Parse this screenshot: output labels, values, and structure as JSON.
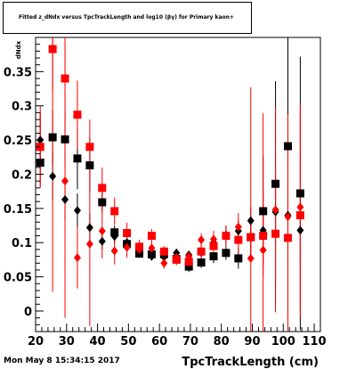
{
  "title": "Fitted  z_dNdx  versus TpcTrackLength and log10 (βγ) for Primary kaon+",
  "footer": {
    "timestamp": "Mon May  8 15:34:15 2017"
  },
  "chart_data": {
    "type": "scatter",
    "title": "Fitted  z_dNdx  versus TpcTrackLength and log10 (βγ) for Primary kaon+",
    "xlabel": "TpcTrackLength (cm)",
    "ylabel": "dNdx",
    "xlim": [
      20,
      112
    ],
    "ylim": [
      -0.03,
      0.4
    ],
    "xticks": [
      20,
      30,
      40,
      50,
      60,
      70,
      80,
      90,
      100,
      110
    ],
    "yticks": [
      0,
      0.05,
      0.1,
      0.15,
      0.2,
      0.25,
      0.3,
      0.35
    ],
    "xtick_labels": [
      "20",
      "30",
      "40",
      "50",
      "60",
      "70",
      "80",
      "90",
      "100",
      "110"
    ],
    "ytick_labels": [
      "0",
      "0.05",
      "0.1",
      "0.15",
      "0.2",
      "0.25",
      "0.3",
      "0.35"
    ],
    "grid": false,
    "series": [
      {
        "color": "#000000",
        "marker": "square",
        "points": [
          {
            "x": 21.5,
            "y": 0.217,
            "err": 0.035
          },
          {
            "x": 25.5,
            "y": 0.254,
            "err": 0.04
          },
          {
            "x": 29.5,
            "y": 0.251,
            "err": 0.04
          },
          {
            "x": 33.5,
            "y": 0.223,
            "err": 0.045
          },
          {
            "x": 37.5,
            "y": 0.213,
            "err": 0.04
          },
          {
            "x": 41.5,
            "y": 0.159,
            "err": 0.015
          },
          {
            "x": 45.5,
            "y": 0.115,
            "err": 0.01
          },
          {
            "x": 49.5,
            "y": 0.098,
            "err": 0.008
          },
          {
            "x": 53.5,
            "y": 0.084,
            "err": 0.006
          },
          {
            "x": 57.5,
            "y": 0.083,
            "err": 0.006
          },
          {
            "x": 61.5,
            "y": 0.083,
            "err": 0.006
          },
          {
            "x": 65.5,
            "y": 0.076,
            "err": 0.006
          },
          {
            "x": 69.5,
            "y": 0.065,
            "err": 0.008
          },
          {
            "x": 73.5,
            "y": 0.071,
            "err": 0.008
          },
          {
            "x": 77.5,
            "y": 0.08,
            "err": 0.01
          },
          {
            "x": 81.5,
            "y": 0.085,
            "err": 0.01
          },
          {
            "x": 85.5,
            "y": 0.077,
            "err": 0.015
          },
          {
            "x": 89.5,
            "y": 0.108,
            "err": 0.03
          },
          {
            "x": 93.5,
            "y": 0.146,
            "err": 0.08
          },
          {
            "x": 97.5,
            "y": 0.186,
            "err": 0.15
          },
          {
            "x": 101.5,
            "y": 0.241,
            "err": 0.25
          },
          {
            "x": 105.5,
            "y": 0.172,
            "err": 0.2
          }
        ]
      },
      {
        "color": "#000000",
        "marker": "diamond",
        "points": [
          {
            "x": 21.5,
            "y": 0.25,
            "err": 0.04
          },
          {
            "x": 25.5,
            "y": 0.197,
            "err": 0.035
          },
          {
            "x": 29.5,
            "y": 0.163,
            "err": 0.03
          },
          {
            "x": 33.5,
            "y": 0.147,
            "err": 0.025
          },
          {
            "x": 37.5,
            "y": 0.122,
            "err": 0.02
          },
          {
            "x": 41.5,
            "y": 0.102,
            "err": 0.012
          },
          {
            "x": 45.5,
            "y": 0.109,
            "err": 0.01
          },
          {
            "x": 49.5,
            "y": 0.1,
            "err": 0.008
          },
          {
            "x": 53.5,
            "y": 0.09,
            "err": 0.006
          },
          {
            "x": 57.5,
            "y": 0.08,
            "err": 0.006
          },
          {
            "x": 61.5,
            "y": 0.079,
            "err": 0.006
          },
          {
            "x": 65.5,
            "y": 0.085,
            "err": 0.006
          },
          {
            "x": 69.5,
            "y": 0.082,
            "err": 0.006
          },
          {
            "x": 73.5,
            "y": 0.086,
            "err": 0.008
          },
          {
            "x": 77.5,
            "y": 0.1,
            "err": 0.01
          },
          {
            "x": 81.5,
            "y": 0.111,
            "err": 0.012
          },
          {
            "x": 85.5,
            "y": 0.117,
            "err": 0.015
          },
          {
            "x": 89.5,
            "y": 0.132,
            "err": 0.02
          },
          {
            "x": 93.5,
            "y": 0.118,
            "err": 0.03
          },
          {
            "x": 97.5,
            "y": 0.145,
            "err": 0.05
          },
          {
            "x": 101.5,
            "y": 0.14,
            "err": 0.05
          },
          {
            "x": 105.5,
            "y": 0.118,
            "err": 0.05
          }
        ]
      },
      {
        "color": "#ff0000",
        "marker": "square",
        "points": [
          {
            "x": 21.5,
            "y": 0.24,
            "err": 0.05
          },
          {
            "x": 25.5,
            "y": 0.383,
            "err": 0.06
          },
          {
            "x": 29.5,
            "y": 0.34,
            "err": 0.06
          },
          {
            "x": 33.5,
            "y": 0.287,
            "err": 0.05
          },
          {
            "x": 37.5,
            "y": 0.24,
            "err": 0.04
          },
          {
            "x": 41.5,
            "y": 0.18,
            "err": 0.03
          },
          {
            "x": 45.5,
            "y": 0.146,
            "err": 0.02
          },
          {
            "x": 49.5,
            "y": 0.114,
            "err": 0.015
          },
          {
            "x": 53.5,
            "y": 0.094,
            "err": 0.01
          },
          {
            "x": 57.5,
            "y": 0.11,
            "err": 0.01
          },
          {
            "x": 61.5,
            "y": 0.087,
            "err": 0.008
          },
          {
            "x": 65.5,
            "y": 0.075,
            "err": 0.008
          },
          {
            "x": 69.5,
            "y": 0.072,
            "err": 0.008
          },
          {
            "x": 73.5,
            "y": 0.087,
            "err": 0.01
          },
          {
            "x": 77.5,
            "y": 0.095,
            "err": 0.012
          },
          {
            "x": 81.5,
            "y": 0.11,
            "err": 0.015
          },
          {
            "x": 85.5,
            "y": 0.104,
            "err": 0.02
          },
          {
            "x": 89.5,
            "y": 0.108,
            "err": 0.03
          },
          {
            "x": 93.5,
            "y": 0.11,
            "err": 0.06
          },
          {
            "x": 97.5,
            "y": 0.113,
            "err": 0.1
          },
          {
            "x": 101.5,
            "y": 0.107,
            "err": 0.15
          },
          {
            "x": 105.5,
            "y": 0.14,
            "err": 0.15
          }
        ]
      },
      {
        "color": "#ff0000",
        "marker": "diamond",
        "points": [
          {
            "x": 21.5,
            "y": 0.24,
            "err": 0.06
          },
          {
            "x": 25.5,
            "y": 0.383,
            "err": 0.355
          },
          {
            "x": 29.5,
            "y": 0.19,
            "err": 0.2
          },
          {
            "x": 33.5,
            "y": 0.078,
            "err": 0.045
          },
          {
            "x": 37.5,
            "y": 0.098,
            "err": 0.12
          },
          {
            "x": 41.5,
            "y": 0.117,
            "err": 0.04
          },
          {
            "x": 45.5,
            "y": 0.088,
            "err": 0.02
          },
          {
            "x": 49.5,
            "y": 0.093,
            "err": 0.015
          },
          {
            "x": 53.5,
            "y": 0.09,
            "err": 0.01
          },
          {
            "x": 57.5,
            "y": 0.092,
            "err": 0.01
          },
          {
            "x": 61.5,
            "y": 0.07,
            "err": 0.008
          },
          {
            "x": 65.5,
            "y": 0.078,
            "err": 0.008
          },
          {
            "x": 69.5,
            "y": 0.08,
            "err": 0.008
          },
          {
            "x": 73.5,
            "y": 0.104,
            "err": 0.01
          },
          {
            "x": 77.5,
            "y": 0.105,
            "err": 0.012
          },
          {
            "x": 81.5,
            "y": 0.11,
            "err": 0.015
          },
          {
            "x": 85.5,
            "y": 0.123,
            "err": 0.02
          },
          {
            "x": 89.5,
            "y": 0.077,
            "err": 0.25
          },
          {
            "x": 93.5,
            "y": 0.089,
            "err": 0.2
          },
          {
            "x": 97.5,
            "y": 0.148,
            "err": 0.15
          },
          {
            "x": 101.5,
            "y": 0.138,
            "err": 0.15
          },
          {
            "x": 105.5,
            "y": 0.152,
            "err": 0.15
          }
        ]
      }
    ]
  }
}
